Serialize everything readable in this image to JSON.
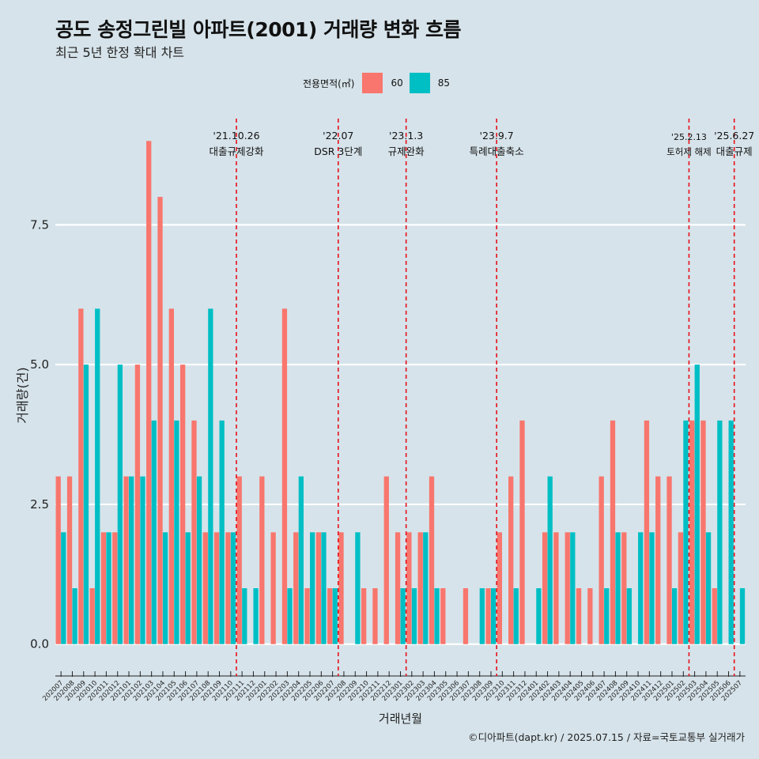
{
  "title": "공도 송정그린빌 아파트(2001) 거래량 변화 흐름",
  "subtitle": "최근 5년 한정 확대 차트",
  "caption": "©디아파트(dapt.kr) / 2025.07.15 / 자료=국토교통부 실거래가",
  "legend_title": "전용면적(㎡)",
  "colors": {
    "s60": "#f8766d",
    "s85": "#00bfc4",
    "line": "#e8101a"
  },
  "chart_data": {
    "type": "bar",
    "xlabel": "거래년월",
    "ylabel": "거래량(건)",
    "ylim": [
      -0.4,
      9.4
    ],
    "yticks": [
      0.0,
      2.5,
      5.0,
      7.5
    ],
    "ytick_labels": [
      "0.0",
      "2.5",
      "5.0",
      "7.5"
    ],
    "categories": [
      "202007",
      "202008",
      "202009",
      "202010",
      "202011",
      "202012",
      "202101",
      "202102",
      "202103",
      "202104",
      "202105",
      "202106",
      "202107",
      "202108",
      "202109",
      "202110",
      "202111",
      "202112",
      "202201",
      "202202",
      "202203",
      "202204",
      "202205",
      "202206",
      "202207",
      "202208",
      "202209",
      "202210",
      "202211",
      "202212",
      "202301",
      "202302",
      "202303",
      "202304",
      "202305",
      "202306",
      "202307",
      "202308",
      "202309",
      "202310",
      "202311",
      "202312",
      "202401",
      "202402",
      "202403",
      "202404",
      "202405",
      "202406",
      "202407",
      "202408",
      "202409",
      "202410",
      "202411",
      "202412",
      "202501",
      "202502",
      "202503",
      "202504",
      "202505",
      "202506",
      "202507"
    ],
    "series": [
      {
        "name": "60",
        "values": [
          3,
          3,
          6,
          1,
          2,
          2,
          3,
          5,
          9,
          8,
          6,
          5,
          4,
          2,
          2,
          2,
          3,
          0,
          3,
          2,
          6,
          2,
          1,
          2,
          1,
          2,
          0,
          1,
          1,
          3,
          2,
          2,
          2,
          3,
          1,
          0,
          1,
          0,
          1,
          2,
          3,
          4,
          0,
          2,
          2,
          2,
          1,
          1,
          3,
          4,
          2,
          0,
          4,
          3,
          3,
          2,
          4,
          4,
          1,
          0,
          0
        ]
      },
      {
        "name": "85",
        "values": [
          2,
          1,
          5,
          6,
          2,
          5,
          3,
          3,
          4,
          2,
          4,
          2,
          3,
          6,
          4,
          2,
          1,
          1,
          0,
          0,
          1,
          3,
          2,
          2,
          1,
          0,
          2,
          0,
          0,
          0,
          1,
          1,
          2,
          1,
          0,
          0,
          0,
          1,
          1,
          0,
          1,
          0,
          1,
          3,
          0,
          2,
          0,
          0,
          1,
          2,
          1,
          2,
          2,
          0,
          1,
          4,
          5,
          2,
          4,
          4,
          1
        ]
      }
    ],
    "events": [
      {
        "date": "'21.10.26",
        "label": "대출규제강화",
        "after": "202110"
      },
      {
        "date": "'22.07",
        "label": "DSR 3단계",
        "after": "202207"
      },
      {
        "date": "'23.1.3",
        "label": "규제완화",
        "after": "202301"
      },
      {
        "date": "'23.9.7",
        "label": "특례대출축소",
        "after": "202309"
      },
      {
        "date": "'25.2.13",
        "label": "토허제 해제",
        "after": "202502"
      },
      {
        "date": "'25.6.27",
        "label": "대출규제",
        "after": "202506"
      }
    ]
  }
}
